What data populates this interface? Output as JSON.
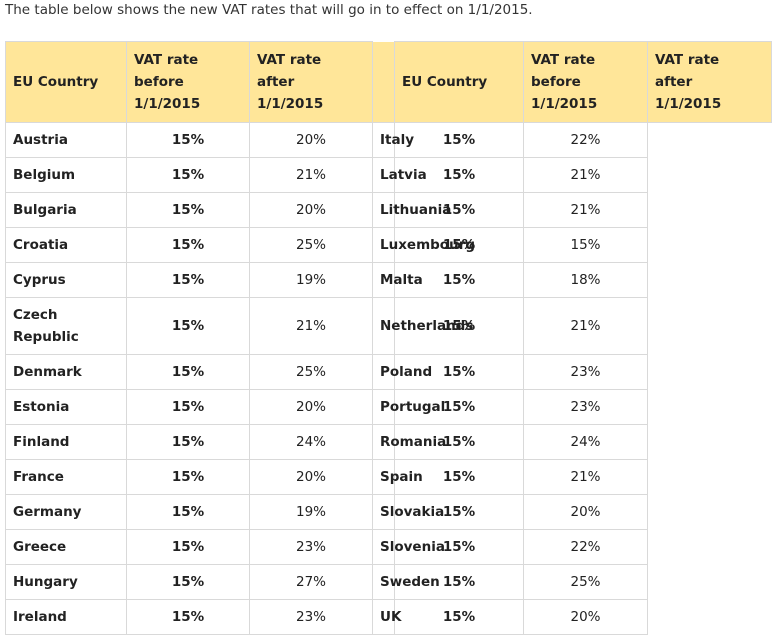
{
  "intro_text": "The table below shows the new VAT rates that will go in to effect on 1/1/2015.",
  "headers": {
    "country": "EU Country",
    "before_line1": "VAT rate",
    "before_line2": "before",
    "before_line3": "1/1/2015",
    "after_line1": "VAT rate",
    "after_line2": "after",
    "after_line3": "1/1/2015"
  },
  "rows": [
    {
      "left": {
        "country": "Austria",
        "before": "15%",
        "after": "20%"
      },
      "right": {
        "country": "Italy",
        "before": "15%",
        "after": "22%"
      }
    },
    {
      "left": {
        "country": "Belgium",
        "before": "15%",
        "after": "21%"
      },
      "right": {
        "country": "Latvia",
        "before": "15%",
        "after": "21%"
      }
    },
    {
      "left": {
        "country": "Bulgaria",
        "before": "15%",
        "after": "20%"
      },
      "right": {
        "country": "Lithuania",
        "before": "15%",
        "after": "21%"
      }
    },
    {
      "left": {
        "country": "Croatia",
        "before": "15%",
        "after": "25%"
      },
      "right": {
        "country": "Luxembourg",
        "before": "15%",
        "after": "15%"
      }
    },
    {
      "left": {
        "country": "Cyprus",
        "before": "15%",
        "after": "19%"
      },
      "right": {
        "country": "Malta",
        "before": "15%",
        "after": "18%"
      }
    },
    {
      "left": {
        "country": "Czech Republic",
        "before": "15%",
        "after": "21%"
      },
      "right": {
        "country": "Netherlands",
        "before": "15%",
        "after": "21%"
      }
    },
    {
      "left": {
        "country": "Denmark",
        "before": "15%",
        "after": "25%"
      },
      "right": {
        "country": "Poland",
        "before": "15%",
        "after": "23%"
      }
    },
    {
      "left": {
        "country": "Estonia",
        "before": "15%",
        "after": "20%"
      },
      "right": {
        "country": "Portugal",
        "before": "15%",
        "after": "23%"
      }
    },
    {
      "left": {
        "country": "Finland",
        "before": "15%",
        "after": "24%"
      },
      "right": {
        "country": "Romania",
        "before": "15%",
        "after": "24%"
      }
    },
    {
      "left": {
        "country": "France",
        "before": "15%",
        "after": "20%"
      },
      "right": {
        "country": "Spain",
        "before": "15%",
        "after": "21%"
      }
    },
    {
      "left": {
        "country": "Germany",
        "before": "15%",
        "after": "19%"
      },
      "right": {
        "country": "Slovakia",
        "before": "15%",
        "after": "20%"
      }
    },
    {
      "left": {
        "country": "Greece",
        "before": "15%",
        "after": "23%"
      },
      "right": {
        "country": "Slovenia",
        "before": "15%",
        "after": "22%"
      }
    },
    {
      "left": {
        "country": "Hungary",
        "before": "15%",
        "after": "27%"
      },
      "right": {
        "country": "Sweden",
        "before": "15%",
        "after": "25%"
      }
    },
    {
      "left": {
        "country": "Ireland",
        "before": "15%",
        "after": "23%"
      },
      "right": {
        "country": "UK",
        "before": "15%",
        "after": "20%"
      }
    }
  ],
  "colors": {
    "header_bg": "#ffe699",
    "separator": "#bfbfbf",
    "border": "#d9d9d9"
  }
}
